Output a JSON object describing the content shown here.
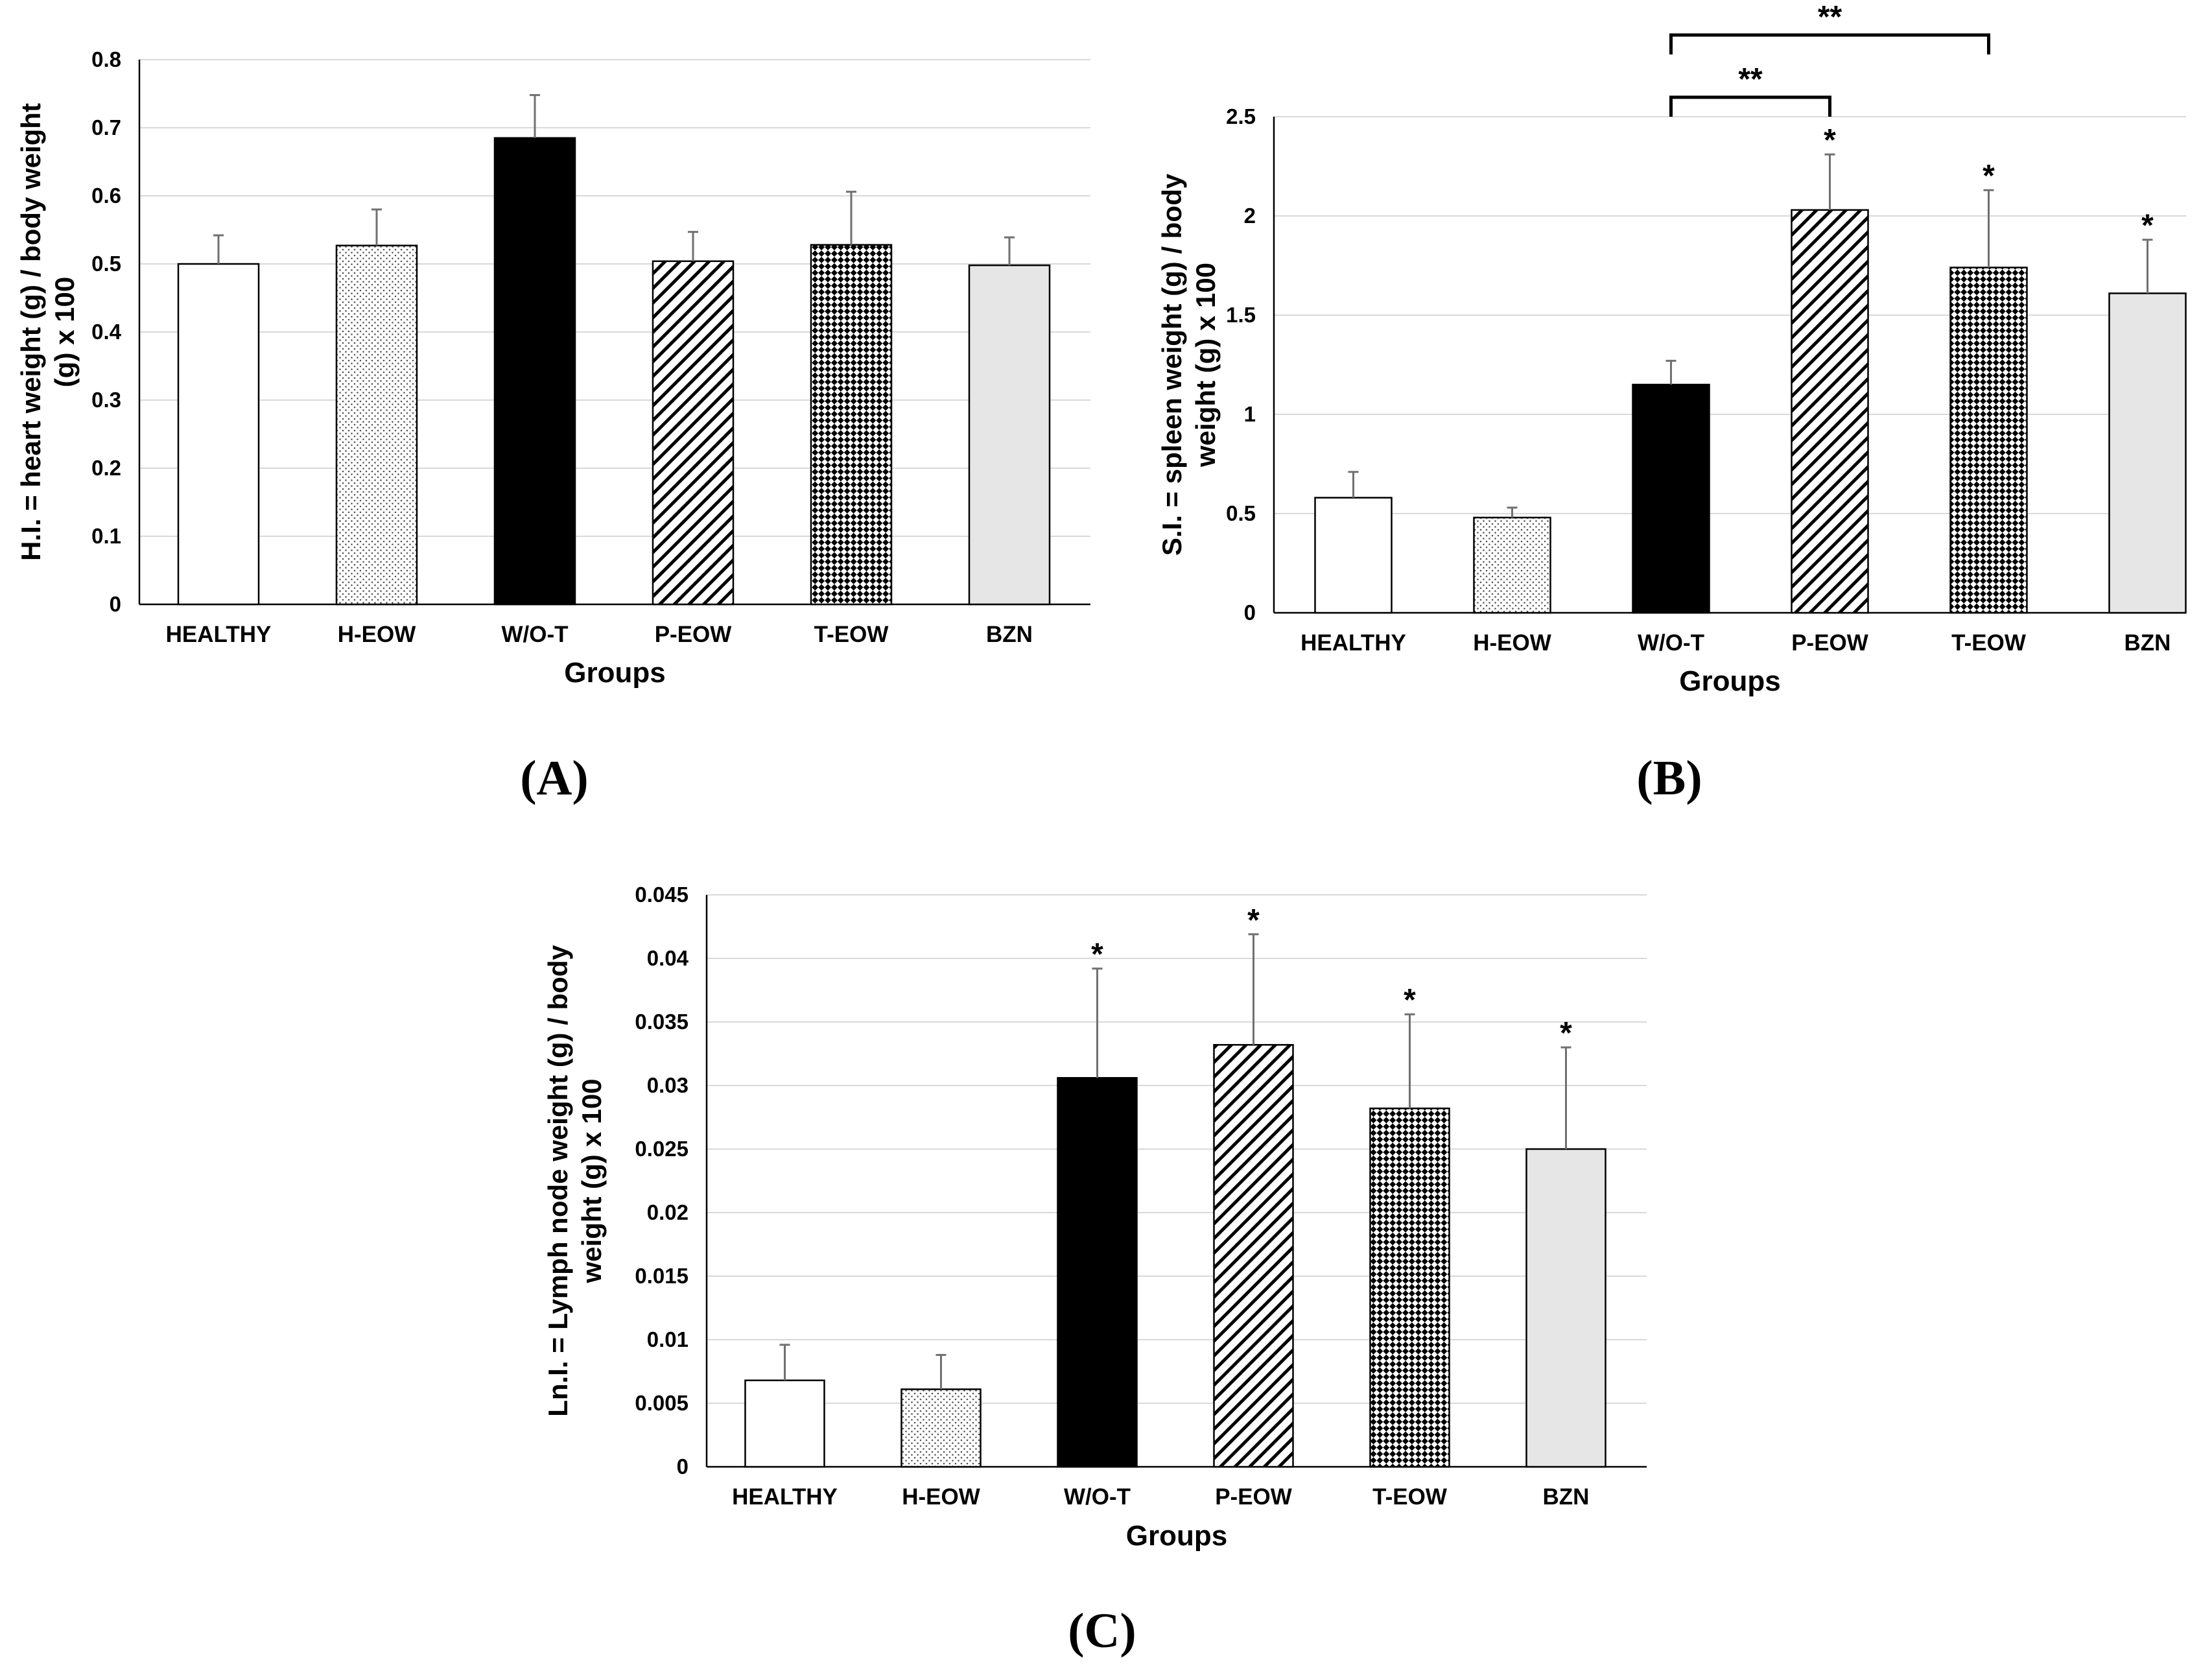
{
  "chart_data": [
    {
      "id": "A",
      "type": "bar",
      "panel_label": "(A)",
      "title": "",
      "xlabel": "Groups",
      "ylabel_lines": [
        "H.I. = heart weight (g) / body weight",
        "(g) x 100"
      ],
      "categories": [
        "HEALTHY",
        "H-EOW",
        "W/O-T",
        "P-EOW",
        "T-EOW",
        "BZN"
      ],
      "values": [
        0.5,
        0.527,
        0.685,
        0.504,
        0.528,
        0.498
      ],
      "errors": [
        0.042,
        0.053,
        0.063,
        0.043,
        0.078,
        0.041
      ],
      "yticks": [
        "0",
        "0.1",
        "0.2",
        "0.3",
        "0.4",
        "0.5",
        "0.6",
        "0.7",
        "0.8"
      ],
      "ylim": [
        0,
        0.8
      ],
      "grid": true,
      "fills": [
        "white",
        "dots",
        "black",
        "diag",
        "checker",
        "gray"
      ],
      "markers": [
        "",
        "",
        "",
        "",
        "",
        ""
      ],
      "brackets": []
    },
    {
      "id": "B",
      "type": "bar",
      "panel_label": "(B)",
      "title": "",
      "xlabel": "Groups",
      "ylabel_lines": [
        "S.I. = spleen weight (g) / body",
        "weight (g) x 100"
      ],
      "categories": [
        "HEALTHY",
        "H-EOW",
        "W/O-T",
        "P-EOW",
        "T-EOW",
        "BZN"
      ],
      "values": [
        0.58,
        0.48,
        1.15,
        2.03,
        1.74,
        1.61
      ],
      "errors": [
        0.13,
        0.05,
        0.12,
        0.28,
        0.39,
        0.27
      ],
      "yticks": [
        "0",
        "0.5",
        "1",
        "1.5",
        "2",
        "2.5"
      ],
      "ylim": [
        0,
        2.5
      ],
      "grid": true,
      "fills": [
        "white",
        "dots",
        "black",
        "diag",
        "checker",
        "gray"
      ],
      "markers": [
        "",
        "",
        "",
        "*",
        "*",
        "*"
      ],
      "brackets": [
        {
          "from": 2,
          "to": 3,
          "label": "**",
          "level": 1
        },
        {
          "from": 2,
          "to": 4,
          "label": "**",
          "level": 2
        }
      ]
    },
    {
      "id": "C",
      "type": "bar",
      "panel_label": "(C)",
      "title": "",
      "xlabel": "Groups",
      "ylabel_lines": [
        "Ln.I. = Lymph node weight (g) / body",
        "weight (g) x 100"
      ],
      "categories": [
        "HEALTHY",
        "H-EOW",
        "W/O-T",
        "P-EOW",
        "T-EOW",
        "BZN"
      ],
      "values": [
        0.0068,
        0.0061,
        0.0306,
        0.0332,
        0.0282,
        0.025
      ],
      "errors": [
        0.0028,
        0.0027,
        0.0086,
        0.0087,
        0.0074,
        0.008
      ],
      "yticks": [
        "0",
        "0.005",
        "0.01",
        "0.015",
        "0.02",
        "0.025",
        "0.03",
        "0.035",
        "0.04",
        "0.045"
      ],
      "ylim": [
        0,
        0.045
      ],
      "grid": true,
      "fills": [
        "white",
        "dots",
        "black",
        "diag",
        "checker",
        "gray"
      ],
      "markers": [
        "",
        "",
        "*",
        "*",
        "*",
        "*"
      ],
      "brackets": []
    }
  ]
}
